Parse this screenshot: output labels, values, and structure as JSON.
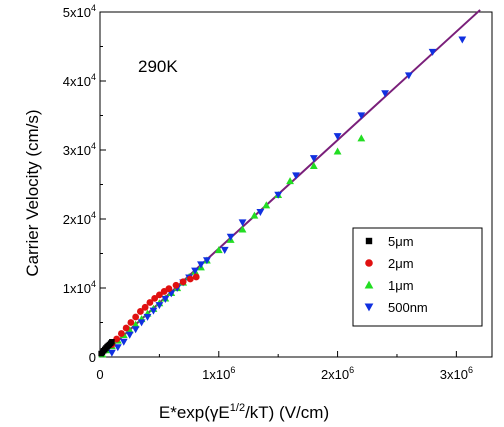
{
  "chart_data": {
    "type": "scatter",
    "xlabel_parts": [
      "E*exp(",
      "γ",
      "E",
      "1/2",
      "/kT) (V/cm)"
    ],
    "ylabel": "Carrier Velocity (cm/s)",
    "annotation": "290K",
    "xlim": [
      0,
      3300000
    ],
    "ylim": [
      0,
      50000
    ],
    "x_ticks": [
      {
        "value": 0,
        "mant": "0",
        "exp": ""
      },
      {
        "value": 1000000,
        "mant": "1x10",
        "exp": "6"
      },
      {
        "value": 2000000,
        "mant": "2x10",
        "exp": "6"
      },
      {
        "value": 3000000,
        "mant": "3x10",
        "exp": "6"
      }
    ],
    "y_ticks": [
      {
        "value": 0,
        "mant": "0",
        "exp": ""
      },
      {
        "value": 10000,
        "mant": "1x10",
        "exp": "4"
      },
      {
        "value": 20000,
        "mant": "2x10",
        "exp": "4"
      },
      {
        "value": 30000,
        "mant": "3x10",
        "exp": "4"
      },
      {
        "value": 40000,
        "mant": "4x10",
        "exp": "4"
      },
      {
        "value": 50000,
        "mant": "5x10",
        "exp": "4"
      }
    ],
    "legend_position": "bottom-right",
    "series": [
      {
        "name": "5μm",
        "marker": "square",
        "color": "#000000",
        "points": [
          [
            10000,
            500
          ],
          [
            20000,
            700
          ],
          [
            30000,
            900
          ],
          [
            40000,
            1100
          ],
          [
            50000,
            1300
          ],
          [
            60000,
            1500
          ],
          [
            70000,
            1650
          ],
          [
            80000,
            1800
          ],
          [
            90000,
            2000
          ],
          [
            100000,
            2200
          ]
        ]
      },
      {
        "name": "2μm",
        "marker": "circle",
        "color": "#e01010",
        "points": [
          [
            100000,
            1800
          ],
          [
            140000,
            2600
          ],
          [
            180000,
            3400
          ],
          [
            220000,
            4200
          ],
          [
            260000,
            5000
          ],
          [
            300000,
            5800
          ],
          [
            340000,
            6600
          ],
          [
            380000,
            7200
          ],
          [
            420000,
            7900
          ],
          [
            460000,
            8500
          ],
          [
            500000,
            9000
          ],
          [
            540000,
            9500
          ],
          [
            580000,
            9900
          ],
          [
            640000,
            10400
          ],
          [
            700000,
            10900
          ],
          [
            760000,
            11300
          ],
          [
            810000,
            11600
          ]
        ]
      },
      {
        "name": "1μm",
        "marker": "triangle-up",
        "color": "#22dd22",
        "points": [
          [
            20000,
            400
          ],
          [
            60000,
            1000
          ],
          [
            100000,
            1600
          ],
          [
            150000,
            2400
          ],
          [
            200000,
            3200
          ],
          [
            250000,
            3900
          ],
          [
            300000,
            4700
          ],
          [
            350000,
            5500
          ],
          [
            400000,
            6300
          ],
          [
            450000,
            7000
          ],
          [
            500000,
            7800
          ],
          [
            550000,
            8500
          ],
          [
            600000,
            9300
          ],
          [
            650000,
            10000
          ],
          [
            700000,
            10800
          ],
          [
            750000,
            11600
          ],
          [
            800000,
            12400
          ],
          [
            850000,
            13000
          ],
          [
            900000,
            14000
          ],
          [
            1000000,
            15500
          ],
          [
            1100000,
            17000
          ],
          [
            1200000,
            18500
          ],
          [
            1300000,
            20500
          ],
          [
            1400000,
            22000
          ],
          [
            1500000,
            23500
          ],
          [
            1600000,
            25500
          ],
          [
            1800000,
            27700
          ],
          [
            2000000,
            29800
          ],
          [
            2200000,
            31700
          ]
        ]
      },
      {
        "name": "500nm",
        "marker": "triangle-down",
        "color": "#1030e0",
        "points": [
          [
            100000,
            600
          ],
          [
            150000,
            1400
          ],
          [
            200000,
            2200
          ],
          [
            250000,
            3200
          ],
          [
            300000,
            4000
          ],
          [
            350000,
            5000
          ],
          [
            400000,
            5800
          ],
          [
            450000,
            6700
          ],
          [
            500000,
            7500
          ],
          [
            550000,
            8400
          ],
          [
            600000,
            9200
          ],
          [
            650000,
            10000
          ],
          [
            700000,
            10800
          ],
          [
            750000,
            11500
          ],
          [
            800000,
            12500
          ],
          [
            850000,
            13400
          ],
          [
            900000,
            14000
          ],
          [
            1050000,
            15500
          ],
          [
            1100000,
            17400
          ],
          [
            1200000,
            19500
          ],
          [
            1350000,
            21000
          ],
          [
            1500000,
            23500
          ],
          [
            1650000,
            26300
          ],
          [
            1800000,
            28800
          ],
          [
            2000000,
            32000
          ],
          [
            2200000,
            35000
          ],
          [
            2400000,
            38200
          ],
          [
            2600000,
            40800
          ],
          [
            2800000,
            44200
          ],
          [
            3050000,
            46000
          ]
        ]
      }
    ],
    "fit_line": {
      "color": "#7a1f7a",
      "points": [
        [
          0,
          0
        ],
        [
          3200000,
          50300
        ]
      ]
    }
  }
}
